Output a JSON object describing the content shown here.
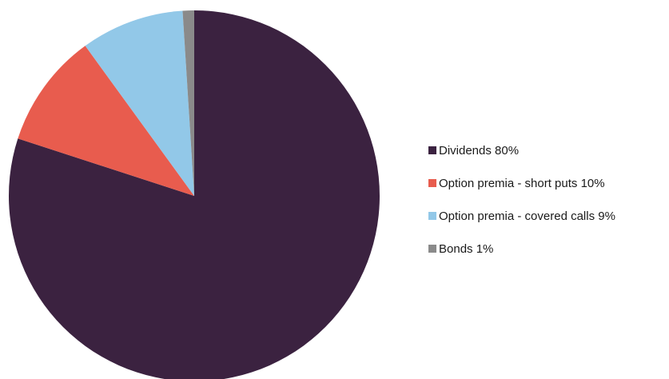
{
  "chart_data": {
    "type": "pie",
    "start_angle_deg": 0,
    "direction": "clockwise",
    "legend_position": "right",
    "slices": [
      {
        "label": "Dividends 80%",
        "value": 80,
        "color": "#3b2240"
      },
      {
        "label": "Option premia - short puts 10%",
        "value": 10,
        "color": "#e85c4e"
      },
      {
        "label": "Option premia - covered calls 9%",
        "value": 9,
        "color": "#92c8e8"
      },
      {
        "label": "Bonds 1%",
        "value": 1,
        "color": "#8a8a8a"
      }
    ]
  }
}
